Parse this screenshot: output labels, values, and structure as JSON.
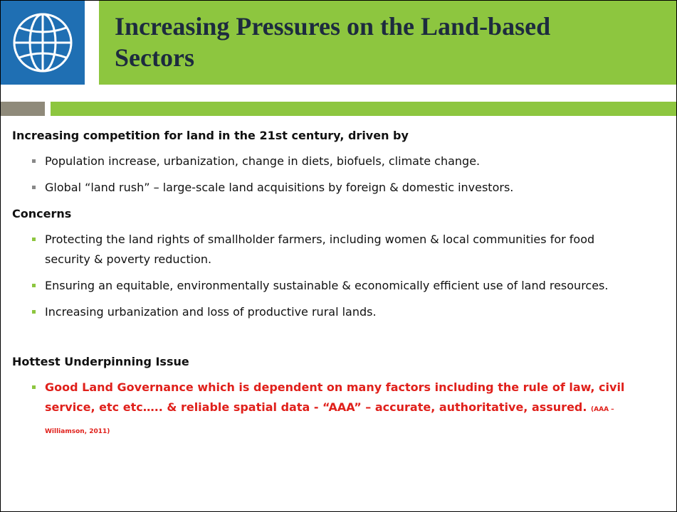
{
  "header": {
    "title": "Increasing Pressures on the Land-based Sectors"
  },
  "sections": [
    {
      "heading": "Increasing competition for land in the 21st century, driven by",
      "bullets": [
        "Population increase, urbanization, change in diets, biofuels, climate change.",
        "Global “land rush” – large-scale land acquisitions by foreign & domestic investors."
      ]
    },
    {
      "heading": "Concerns",
      "bullets": [
        "Protecting the land rights of smallholder farmers, including women & local communities for food security & poverty reduction.",
        "Ensuring an equitable, environmentally sustainable & economically efficient use of land resources.",
        "Increasing urbanization and loss of productive rural lands."
      ]
    },
    {
      "heading": "Hottest Underpinning Issue",
      "bullets": [
        "Good Land Governance which is dependent on many factors including the rule of law, civil service, etc etc….. & reliable spatial data  - “AAA” – accurate, authoritative, assured."
      ],
      "note": "(AAA – Williamson, 2011)"
    }
  ]
}
